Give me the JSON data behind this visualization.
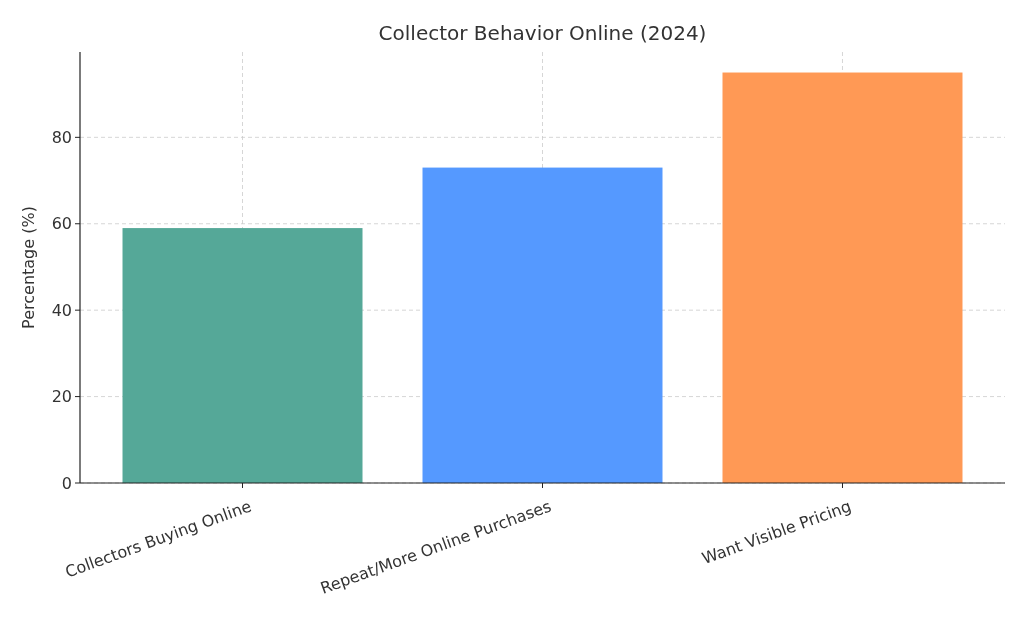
{
  "chart_data": {
    "type": "bar",
    "title": "Collector Behavior Online (2024)",
    "ylabel": "Percentage (%)",
    "categories": [
      "Collectors Buying Online",
      "Repeat/More Online Purchases",
      "Want Visible Pricing"
    ],
    "values": [
      59,
      73,
      95
    ],
    "colors": [
      "#55a898",
      "#5599ff",
      "#ff9955"
    ],
    "ylim": [
      0,
      99.75
    ],
    "yticks": [
      0,
      20,
      40,
      60,
      80
    ],
    "grid": true
  }
}
